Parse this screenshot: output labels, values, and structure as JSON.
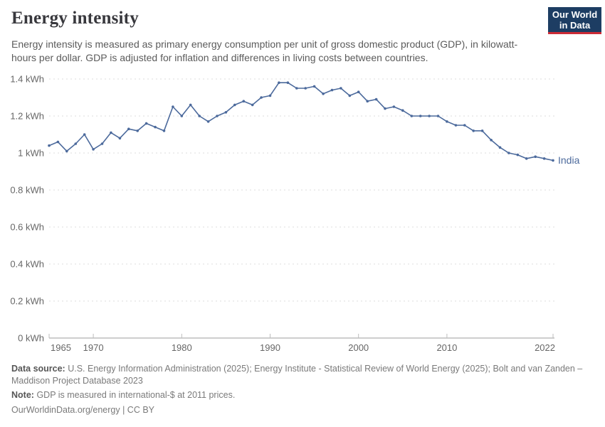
{
  "header": {
    "title": "Energy intensity",
    "subtitle": "Energy intensity is measured as primary energy consumption per unit of gross domestic product (GDP), in kilowatt-hours per dollar. GDP is adjusted for inflation and differences in living costs between countries.",
    "logo": {
      "line1": "Our World",
      "line2": "in Data",
      "bg_color": "#1d3d63",
      "accent_color": "#cc2b36"
    }
  },
  "chart_data": {
    "type": "line",
    "title": "Energy intensity",
    "unit": "kWh",
    "xlabel": "",
    "ylabel": "",
    "xlim": [
      1965,
      2022
    ],
    "ylim": [
      0,
      1.4
    ],
    "grid": "horizontal-dashed",
    "legend": "line-end-label",
    "x_ticks": [
      1965,
      1970,
      1980,
      1990,
      2000,
      2010,
      2022
    ],
    "y_ticks": [
      0,
      0.2,
      0.4,
      0.6,
      0.8,
      1,
      1.2,
      1.4
    ],
    "y_tick_labels": [
      "0 kWh",
      "0.2 kWh",
      "0.4 kWh",
      "0.6 kWh",
      "0.8 kWh",
      "1 kWh",
      "1.2 kWh",
      "1.4 kWh"
    ],
    "x": [
      1965,
      1966,
      1967,
      1968,
      1969,
      1970,
      1971,
      1972,
      1973,
      1974,
      1975,
      1976,
      1977,
      1978,
      1979,
      1980,
      1981,
      1982,
      1983,
      1984,
      1985,
      1986,
      1987,
      1988,
      1989,
      1990,
      1991,
      1992,
      1993,
      1994,
      1995,
      1996,
      1997,
      1998,
      1999,
      2000,
      2001,
      2002,
      2003,
      2004,
      2005,
      2006,
      2007,
      2008,
      2009,
      2010,
      2011,
      2012,
      2013,
      2014,
      2015,
      2016,
      2017,
      2018,
      2019,
      2020,
      2021,
      2022
    ],
    "series": [
      {
        "name": "India",
        "color": "#4c6a9c",
        "values": [
          1.04,
          1.06,
          1.01,
          1.05,
          1.1,
          1.02,
          1.05,
          1.11,
          1.08,
          1.13,
          1.12,
          1.16,
          1.14,
          1.12,
          1.25,
          1.2,
          1.26,
          1.2,
          1.17,
          1.2,
          1.22,
          1.26,
          1.28,
          1.26,
          1.3,
          1.31,
          1.38,
          1.38,
          1.35,
          1.35,
          1.36,
          1.32,
          1.34,
          1.35,
          1.31,
          1.33,
          1.28,
          1.29,
          1.24,
          1.25,
          1.23,
          1.2,
          1.2,
          1.2,
          1.2,
          1.17,
          1.15,
          1.15,
          1.12,
          1.12,
          1.07,
          1.03,
          1.0,
          0.99,
          0.97,
          0.98,
          0.97,
          0.96
        ]
      }
    ]
  },
  "footer": {
    "data_source_label": "Data source:",
    "data_source": "U.S. Energy Information Administration (2025); Energy Institute - Statistical Review of World Energy (2025); Bolt and van Zanden – Maddison Project Database 2023",
    "note_label": "Note:",
    "note": "GDP is measured in international-$ at 2011 prices.",
    "link": "OurWorldinData.org/energy | CC BY"
  }
}
